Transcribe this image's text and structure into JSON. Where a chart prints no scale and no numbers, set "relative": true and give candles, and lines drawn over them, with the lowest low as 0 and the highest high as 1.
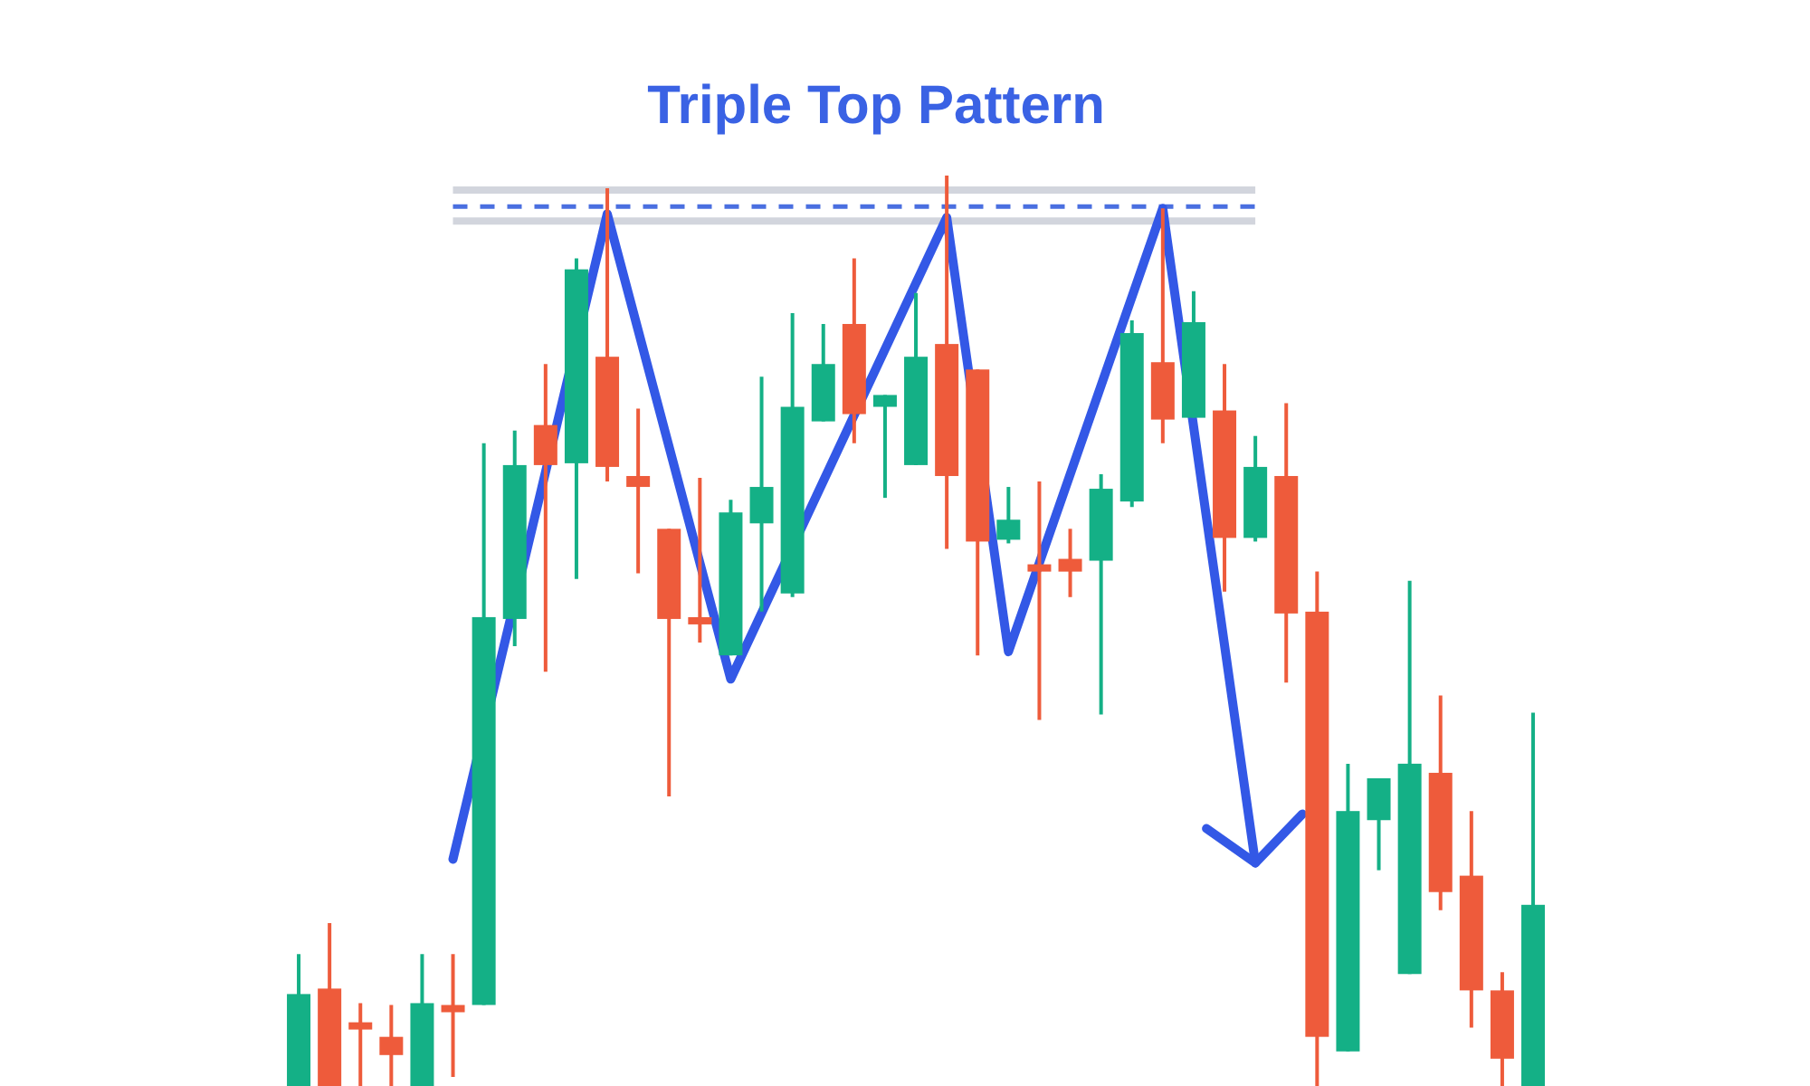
{
  "chart_data": {
    "type": "candlestick",
    "title": "Triple Top Pattern",
    "relative": true,
    "categories": [
      null,
      null,
      null,
      null,
      null,
      null,
      null,
      null,
      null,
      null,
      null,
      null,
      null,
      null,
      null,
      null,
      null,
      null,
      null,
      null,
      null,
      null,
      null,
      null,
      null,
      null,
      null,
      null,
      null,
      null,
      null,
      null,
      null,
      null,
      null,
      null,
      null,
      null,
      null,
      null,
      null
    ],
    "ohlc": [
      [
        0,
        0.145,
        0,
        0.101
      ],
      [
        0.107,
        0.179,
        0,
        0
      ],
      [
        0.068,
        0.091,
        0,
        0.064
      ],
      [
        0.054,
        0.089,
        0,
        0.034
      ],
      [
        0,
        0.145,
        0,
        0.091
      ],
      [
        0.087,
        0.145,
        0.01,
        0.083
      ],
      [
        0.089,
        0.706,
        0.089,
        0.515
      ],
      [
        0.513,
        0.72,
        0.483,
        0.682
      ],
      [
        0.726,
        0.793,
        0.455,
        0.682
      ],
      [
        0.684,
        0.909,
        0.557,
        0.897
      ],
      [
        0.801,
        0.986,
        0.664,
        0.68
      ],
      [
        0.67,
        0.744,
        0.563,
        0.658
      ],
      [
        0.612,
        0.612,
        0.318,
        0.513
      ],
      [
        0.513,
        0.668,
        0.487,
        0.509
      ],
      [
        0.473,
        0.644,
        0.473,
        0.63
      ],
      [
        0.618,
        0.779,
        0.521,
        0.658
      ],
      [
        0.541,
        0.849,
        0.537,
        0.746
      ],
      [
        0.73,
        0.837,
        0.73,
        0.793
      ],
      [
        0.837,
        0.909,
        0.706,
        0.738
      ],
      [
        0.746,
        0.759,
        0.646,
        0.759
      ],
      [
        0.682,
        0.871,
        0.682,
        0.801
      ],
      [
        0.815,
        1,
        0.59,
        0.67
      ],
      [
        0.787,
        0.787,
        0.473,
        0.598
      ],
      [
        0.6,
        0.658,
        0.596,
        0.622
      ],
      [
        0.573,
        0.664,
        0.402,
        0.565
      ],
      [
        0.579,
        0.612,
        0.537,
        0.565
      ],
      [
        0.577,
        0.672,
        0.408,
        0.656
      ],
      [
        0.642,
        0.841,
        0.636,
        0.827
      ],
      [
        0.795,
        0.964,
        0.706,
        0.732
      ],
      [
        0.734,
        0.873,
        0.734,
        0.839
      ],
      [
        0.742,
        0.793,
        0.543,
        0.602
      ],
      [
        0.602,
        0.714,
        0.598,
        0.68
      ],
      [
        0.67,
        0.75,
        0.443,
        0.519
      ],
      [
        0.521,
        0.565,
        0,
        0.054
      ],
      [
        0.038,
        0.354,
        0.038,
        0.302
      ],
      [
        0.292,
        0.338,
        0.237,
        0.338
      ],
      [
        0.123,
        0.555,
        0.123,
        0.354
      ],
      [
        0.344,
        0.429,
        0.193,
        0.213
      ],
      [
        0.231,
        0.302,
        0.064,
        0.105
      ],
      [
        0.105,
        0.125,
        0,
        0.03
      ],
      [
        0,
        0.41,
        0,
        0.199
      ]
    ],
    "colors": [
      "#14b086",
      "#ee5b3b",
      "#ee5b3b",
      "#ee5b3b",
      "#14b086",
      "#ee5b3b",
      "#14b086",
      "#14b086",
      "#ee5b3b",
      "#14b086",
      "#ee5b3b",
      "#ee5b3b",
      "#ee5b3b",
      "#ee5b3b",
      "#14b086",
      "#14b086",
      "#14b086",
      "#14b086",
      "#ee5b3b",
      "#14b086",
      "#14b086",
      "#ee5b3b",
      "#ee5b3b",
      "#14b086",
      "#ee5b3b",
      "#ee5b3b",
      "#14b086",
      "#14b086",
      "#ee5b3b",
      "#14b086",
      "#ee5b3b",
      "#14b086",
      "#ee5b3b",
      "#ee5b3b",
      "#14b086",
      "#14b086",
      "#14b086",
      "#ee5b3b",
      "#ee5b3b",
      "#ee5b3b",
      "#14b086"
    ],
    "series": [
      {
        "type": "line",
        "color": "#3358e6",
        "values": [
          null,
          null,
          null,
          null,
          null,
          0.249,
          null,
          null,
          null,
          null,
          0.958,
          null,
          null,
          null,
          0.447,
          null,
          null,
          null,
          null,
          null,
          null,
          0.954,
          null,
          0.477,
          null,
          null,
          null,
          null,
          0.964,
          null,
          null,
          0.245,
          null,
          null,
          null,
          null,
          null,
          null,
          null,
          null,
          null
        ]
      }
    ],
    "ref_lines": [
      {
        "axis": "y",
        "value": 0.984,
        "color": "#d2d5dd"
      },
      {
        "axis": "y",
        "value": 0.966,
        "color": "#4a6fe0",
        "line_style": "dashed"
      },
      {
        "axis": "y",
        "value": 0.95,
        "color": "#d2d5dd"
      }
    ]
  }
}
